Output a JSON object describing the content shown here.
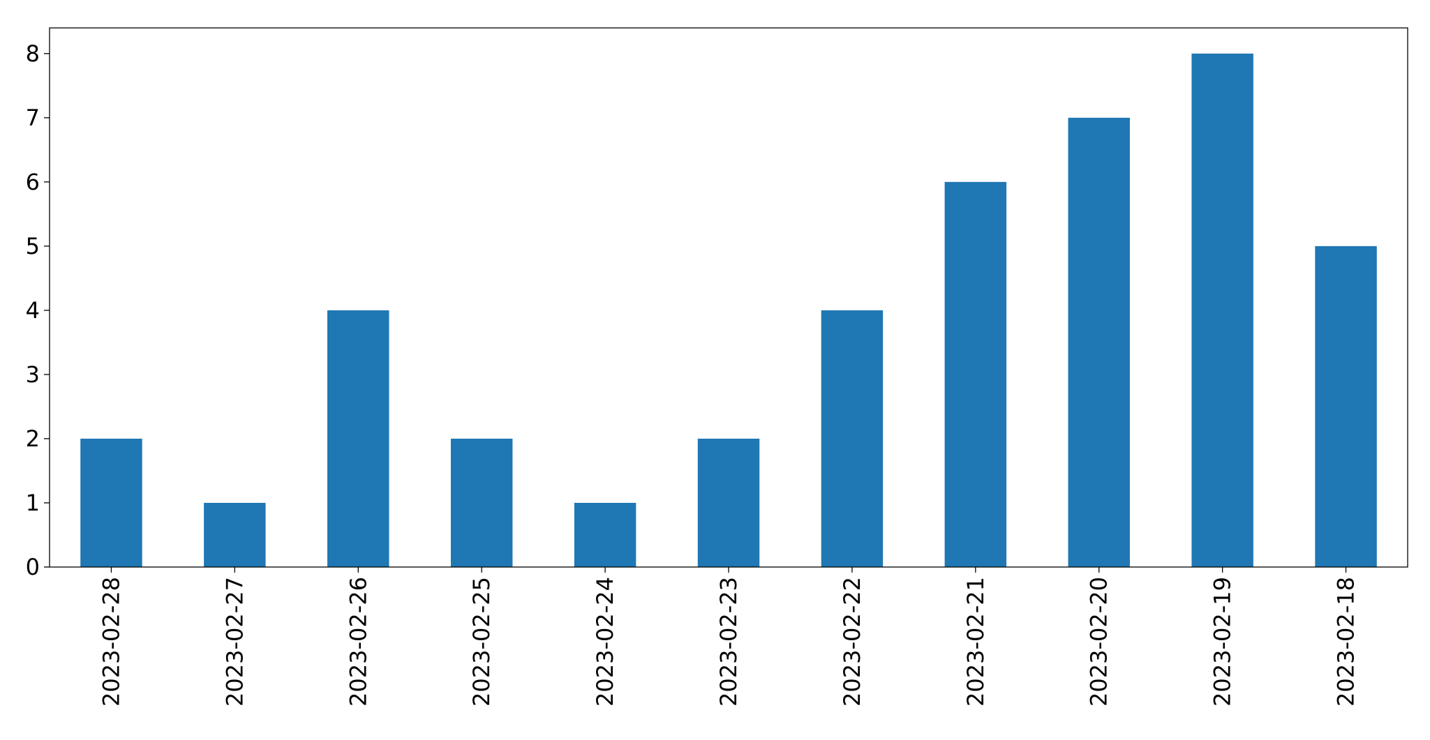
{
  "chart_data": {
    "type": "bar",
    "title": "",
    "xlabel": "",
    "ylabel": "",
    "categories": [
      "2023-02-28",
      "2023-02-27",
      "2023-02-26",
      "2023-02-25",
      "2023-02-24",
      "2023-02-23",
      "2023-02-22",
      "2023-02-21",
      "2023-02-20",
      "2023-02-19",
      "2023-02-18"
    ],
    "values": [
      2,
      1,
      4,
      2,
      1,
      2,
      4,
      6,
      7,
      8,
      5
    ],
    "ylim": [
      0,
      8.4
    ],
    "yticks": [
      "0",
      "1",
      "2",
      "3",
      "4",
      "5",
      "6",
      "7",
      "8"
    ],
    "grid": false,
    "legend": "none",
    "bar_color": "#1f77b4"
  }
}
